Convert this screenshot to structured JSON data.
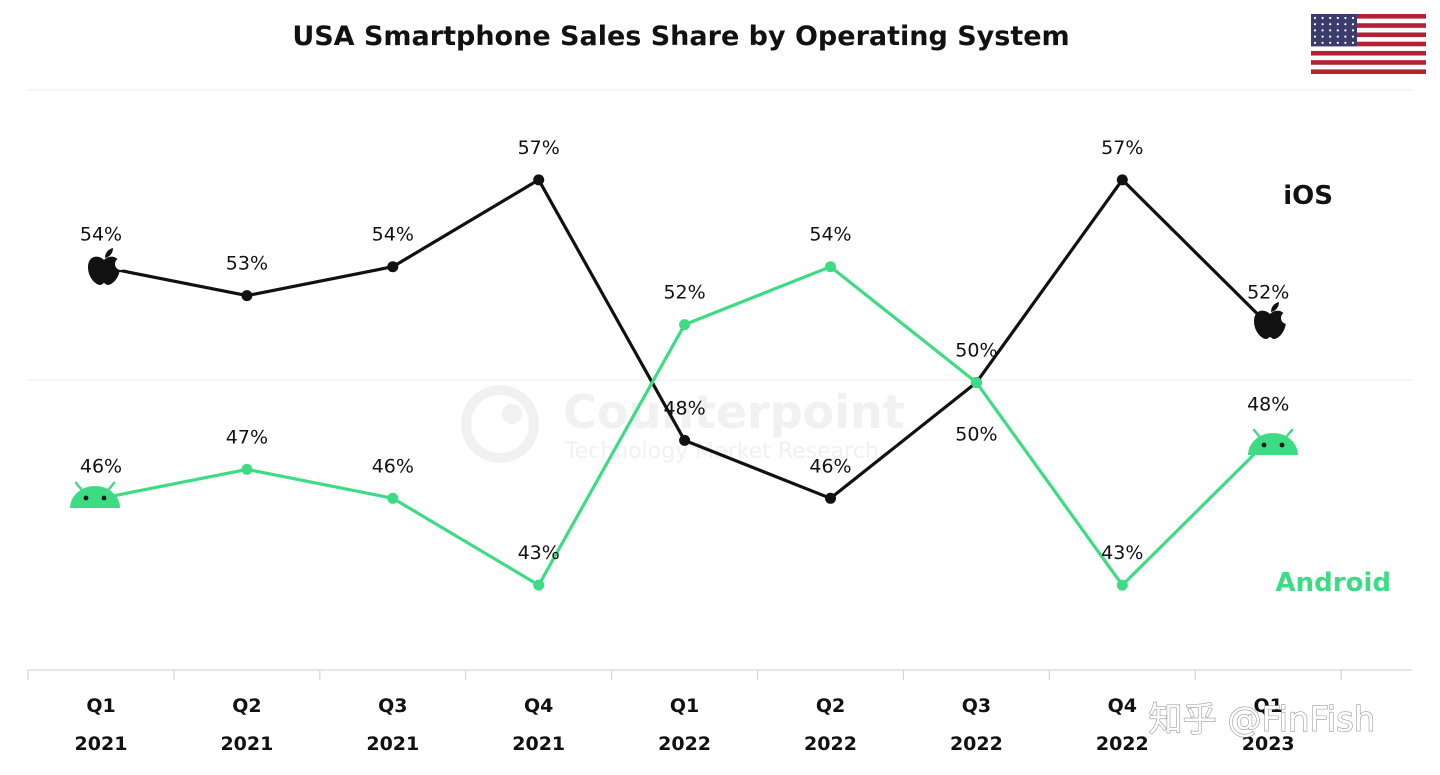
{
  "chart_data": {
    "type": "line",
    "title": "USA Smartphone Sales Share by Operating System",
    "categories": [
      {
        "quarter": "Q1",
        "year": "2021"
      },
      {
        "quarter": "Q2",
        "year": "2021"
      },
      {
        "quarter": "Q3",
        "year": "2021"
      },
      {
        "quarter": "Q4",
        "year": "2021"
      },
      {
        "quarter": "Q1",
        "year": "2022"
      },
      {
        "quarter": "Q2",
        "year": "2022"
      },
      {
        "quarter": "Q3",
        "year": "2022"
      },
      {
        "quarter": "Q4",
        "year": "2022"
      },
      {
        "quarter": "Q1",
        "year": "2023"
      }
    ],
    "series": [
      {
        "name": "iOS",
        "color": "#111111",
        "values": [
          54,
          53,
          54,
          57,
          48,
          46,
          50,
          57,
          52
        ],
        "labels": [
          "54%",
          "53%",
          "54%",
          "57%",
          "48%",
          "46%",
          "50%",
          "57%",
          "52%"
        ]
      },
      {
        "name": "Android",
        "color": "#3ddc84",
        "values": [
          46,
          47,
          46,
          43,
          52,
          54,
          50,
          43,
          48
        ],
        "labels": [
          "46%",
          "47%",
          "46%",
          "43%",
          "52%",
          "54%",
          "50%",
          "43%",
          "48%"
        ]
      }
    ],
    "ylim": [
      40,
      60
    ],
    "grid": true,
    "series_label_placement": "right"
  },
  "watermark": {
    "brand": "Counterpoint",
    "tagline": "Technology Market Research"
  },
  "overlay_watermark": "知乎 @FinFish",
  "icons": [
    "usa-flag-icon",
    "apple-logo-icon",
    "android-logo-icon"
  ]
}
